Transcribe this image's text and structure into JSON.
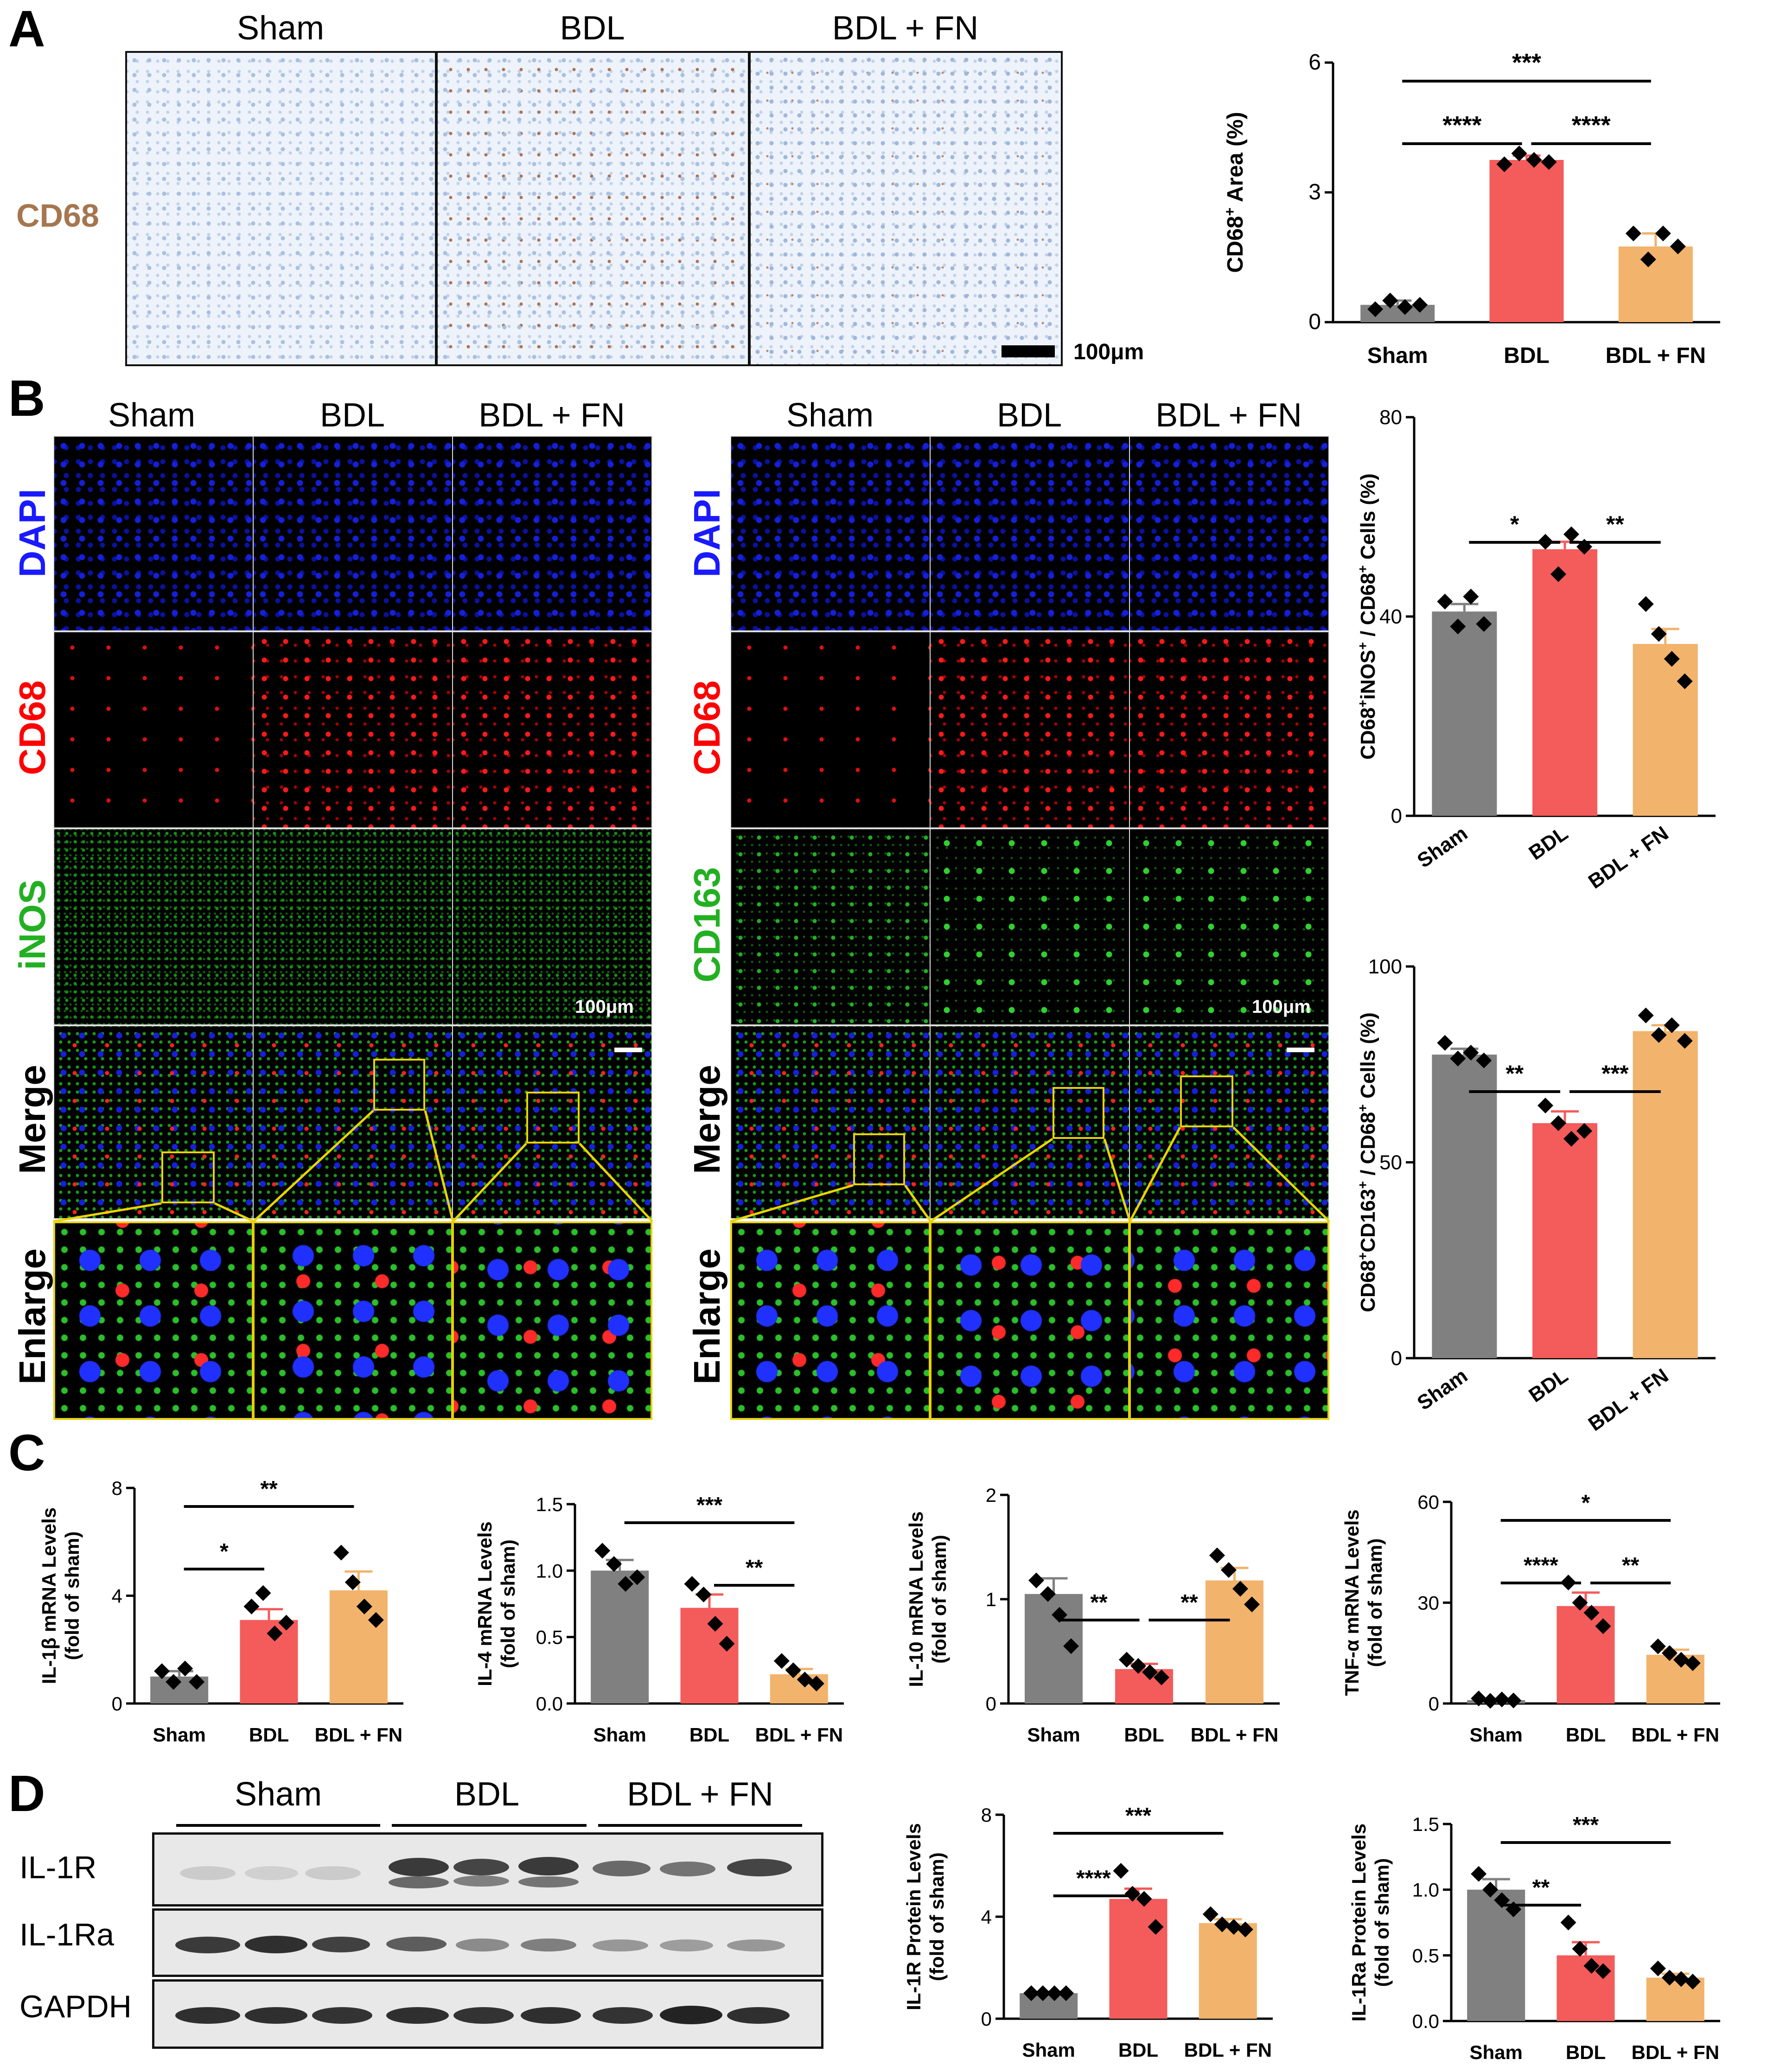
{
  "panels": {
    "A": "A",
    "B": "B",
    "C": "C",
    "D": "D"
  },
  "panelA": {
    "headers": [
      "Sham",
      "BDL",
      "BDL + FN"
    ],
    "row_label": "CD68",
    "scale_label": "100μm"
  },
  "panelB": {
    "left": {
      "headers": [
        "Sham",
        "BDL",
        "BDL + FN"
      ],
      "rows": [
        "DAPI",
        "CD68",
        "iNOS",
        "Merge",
        "Enlarge"
      ],
      "scale_label": "100μm"
    },
    "right": {
      "headers": [
        "Sham",
        "BDL",
        "BDL + FN"
      ],
      "rows": [
        "DAPI",
        "CD68",
        "CD163",
        "Merge",
        "Enlarge"
      ],
      "scale_label": "100μm"
    }
  },
  "panelD": {
    "headers": [
      "Sham",
      "BDL",
      "BDL + FN"
    ],
    "blot_labels": [
      "IL-1R",
      "IL-1Ra",
      "GAPDH"
    ]
  },
  "colors": {
    "sham": "#808080",
    "bdl": "#f45b5b",
    "bdl_fn": "#f2b36c",
    "cd68_text": "#a57650",
    "dapi_text": "#1a1aff",
    "cd68_fl_text": "#ff0000",
    "green_text": "#22b022"
  },
  "chart_data": [
    {
      "id": "A",
      "type": "bar",
      "ylabel": "CD68+ Area (%)",
      "ylabel_parts": [
        "CD68",
        "+",
        " Area (%)"
      ],
      "categories": [
        "Sham",
        "BDL",
        "BDL + FN"
      ],
      "values": [
        0.4,
        3.75,
        1.75
      ],
      "errors": [
        0.1,
        0.1,
        0.3
      ],
      "points": [
        [
          0.3,
          0.5,
          0.35,
          0.4
        ],
        [
          3.65,
          3.9,
          3.75,
          3.7
        ],
        [
          2.05,
          1.45,
          2.05,
          1.75
        ]
      ],
      "ylim": [
        0,
        6
      ],
      "yticks": [
        "0",
        "3",
        "6"
      ],
      "sig": [
        {
          "from": 0,
          "to": 2,
          "label": "***"
        },
        {
          "from": 0,
          "to": 1,
          "label": "****"
        },
        {
          "from": 1,
          "to": 2,
          "label": "****"
        }
      ]
    },
    {
      "id": "B1",
      "type": "bar",
      "ylabel": "CD68+iNOS+ / CD68+ Cells (%)",
      "ylabel_parts": [
        "CD68",
        "+",
        "iNOS",
        "+",
        " / CD68",
        "+",
        " Cells (%)"
      ],
      "categories": [
        "Sham",
        "BDL",
        "BDL + FN"
      ],
      "values": [
        41,
        53.5,
        34.5
      ],
      "errors": [
        1.5,
        1.5,
        3
      ],
      "points": [
        [
          43,
          38,
          44,
          38.5
        ],
        [
          55,
          48.5,
          56.5,
          54
        ],
        [
          42.5,
          36.5,
          31.5,
          27
        ]
      ],
      "ylim": [
        0,
        80
      ],
      "yticks": [
        "0",
        "40",
        "80"
      ],
      "sig": [
        {
          "from": 0,
          "to": 1,
          "label": "*"
        },
        {
          "from": 1,
          "to": 2,
          "label": "**"
        }
      ]
    },
    {
      "id": "B2",
      "type": "bar",
      "ylabel": "CD68+CD163+ / CD68+ Cells (%)",
      "ylabel_parts": [
        "CD68",
        "+",
        "CD163",
        "+",
        " / CD68",
        "+",
        " Cells (%)"
      ],
      "categories": [
        "Sham",
        "BDL",
        "BDL + FN"
      ],
      "values": [
        77.5,
        60,
        83.5
      ],
      "errors": [
        1.5,
        3,
        1.5
      ],
      "points": [
        [
          80.5,
          76.5,
          78,
          76
        ],
        [
          64.5,
          60,
          56,
          58
        ],
        [
          87.5,
          82.5,
          85,
          81
        ]
      ],
      "ylim": [
        0,
        100
      ],
      "yticks": [
        "0",
        "50",
        "100"
      ],
      "sig": [
        {
          "from": 0,
          "to": 1,
          "label": "**"
        },
        {
          "from": 1,
          "to": 2,
          "label": "***"
        }
      ]
    },
    {
      "id": "C1",
      "type": "bar",
      "ylabel": [
        "IL-1β mRNA Levels",
        "(fold of sham)"
      ],
      "categories": [
        "Sham",
        "BDL",
        "BDL + FN"
      ],
      "values": [
        1.0,
        3.1,
        4.2
      ],
      "errors": [
        0.2,
        0.4,
        0.7
      ],
      "points": [
        [
          1.2,
          0.8,
          1.3,
          0.8
        ],
        [
          3.6,
          4.1,
          2.6,
          3.0
        ],
        [
          5.6,
          4.5,
          3.6,
          3.1
        ]
      ],
      "ylim": [
        0,
        8
      ],
      "yticks": [
        "0",
        "4",
        "8"
      ],
      "sig": [
        {
          "from": 0,
          "to": 1,
          "label": "*"
        },
        {
          "from": 0,
          "to": 2,
          "label": "**"
        }
      ]
    },
    {
      "id": "C2",
      "type": "bar",
      "ylabel": [
        "IL-4 mRNA Levels",
        "(fold of sham)"
      ],
      "categories": [
        "Sham",
        "BDL",
        "BDL + FN"
      ],
      "values": [
        1.0,
        0.72,
        0.22
      ],
      "errors": [
        0.08,
        0.1,
        0.04
      ],
      "points": [
        [
          1.15,
          1.05,
          0.9,
          0.95
        ],
        [
          0.9,
          0.82,
          0.6,
          0.45
        ],
        [
          0.32,
          0.25,
          0.18,
          0.15
        ]
      ],
      "ylim": [
        0,
        1.5
      ],
      "yticks": [
        "0.0",
        "0.5",
        "1.0",
        "1.5"
      ],
      "sig": [
        {
          "from": 0,
          "to": 2,
          "label": "***"
        },
        {
          "from": 1,
          "to": 2,
          "label": "**"
        }
      ]
    },
    {
      "id": "C3",
      "type": "bar",
      "ylabel": [
        "IL-10 mRNA Levels",
        "(fold of sham)"
      ],
      "categories": [
        "Sham",
        "BDL",
        "BDL + FN"
      ],
      "values": [
        1.05,
        0.33,
        1.18
      ],
      "errors": [
        0.15,
        0.05,
        0.12
      ],
      "points": [
        [
          1.18,
          1.05,
          0.85,
          0.55
        ],
        [
          0.42,
          0.36,
          0.3,
          0.25
        ],
        [
          1.42,
          1.28,
          1.1,
          0.95
        ]
      ],
      "ylim": [
        0,
        2
      ],
      "yticks": [
        "0",
        "1",
        "2"
      ],
      "sig": [
        {
          "from": 0,
          "to": 1,
          "label": "**"
        },
        {
          "from": 1,
          "to": 2,
          "label": "**"
        }
      ]
    },
    {
      "id": "C4",
      "type": "bar",
      "ylabel": [
        "TNF-α mRNA Levels",
        "(fold of sham)"
      ],
      "categories": [
        "Sham",
        "BDL",
        "BDL + FN"
      ],
      "values": [
        1.0,
        29,
        14.5
      ],
      "errors": [
        0.3,
        4,
        1.5
      ],
      "points": [
        [
          1.5,
          0.8,
          1.2,
          0.9
        ],
        [
          36,
          30,
          27,
          23
        ],
        [
          17,
          15,
          13,
          12
        ]
      ],
      "ylim": [
        0,
        60
      ],
      "yticks": [
        "0",
        "30",
        "60"
      ],
      "sig": [
        {
          "from": 0,
          "to": 2,
          "label": "*"
        },
        {
          "from": 0,
          "to": 1,
          "label": "****"
        },
        {
          "from": 1,
          "to": 2,
          "label": "**"
        }
      ]
    },
    {
      "id": "D1",
      "type": "bar",
      "ylabel": [
        "IL-1R Protein Levels",
        "(fold of sham)"
      ],
      "categories": [
        "Sham",
        "BDL",
        "BDL + FN"
      ],
      "values": [
        1.0,
        4.7,
        3.75
      ],
      "errors": [
        0.05,
        0.4,
        0.15
      ],
      "points": [
        [
          1.0,
          1.0,
          1.0,
          1.0
        ],
        [
          5.8,
          4.9,
          4.7,
          3.6
        ],
        [
          4.1,
          3.7,
          3.6,
          3.5
        ]
      ],
      "ylim": [
        0,
        8
      ],
      "yticks": [
        "0",
        "4",
        "8"
      ],
      "sig": [
        {
          "from": 0,
          "to": 2,
          "label": "***"
        },
        {
          "from": 0,
          "to": 1,
          "label": "****"
        }
      ]
    },
    {
      "id": "D2",
      "type": "bar",
      "ylabel": [
        "IL-1Ra Protein Levels",
        "(fold of sham)"
      ],
      "categories": [
        "Sham",
        "BDL",
        "BDL + FN"
      ],
      "values": [
        1.0,
        0.5,
        0.33
      ],
      "errors": [
        0.08,
        0.1,
        0.03
      ],
      "points": [
        [
          1.12,
          1.0,
          0.92,
          0.85
        ],
        [
          0.75,
          0.55,
          0.42,
          0.38
        ],
        [
          0.4,
          0.33,
          0.32,
          0.3
        ]
      ],
      "ylim": [
        0,
        1.5
      ],
      "yticks": [
        "0.0",
        "0.5",
        "1.0",
        "1.5"
      ],
      "sig": [
        {
          "from": 0,
          "to": 2,
          "label": "***"
        },
        {
          "from": 0,
          "to": 1,
          "label": "**"
        }
      ]
    }
  ]
}
